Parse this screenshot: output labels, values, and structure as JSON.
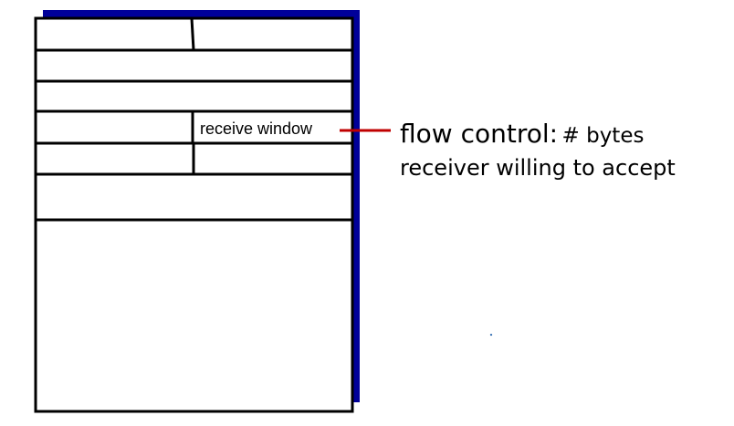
{
  "segment": {
    "field_label": "receive window",
    "shadow_color": "#000099",
    "connector_color": "#c00000"
  },
  "annotation": {
    "title": "flow control:",
    "rest": "# bytes",
    "line2": "receiver willing to accept"
  }
}
